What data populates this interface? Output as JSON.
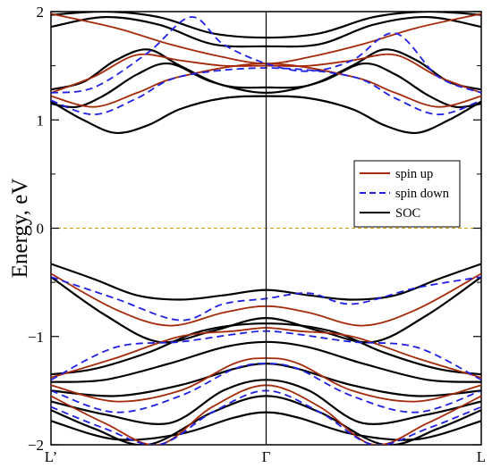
{
  "chart_data": {
    "type": "line",
    "title": "",
    "ylabel": "Energy, eV",
    "ylim": [
      -2,
      2
    ],
    "yticks": [
      {
        "value": -2,
        "label": "−2"
      },
      {
        "value": -1,
        "label": "−1"
      },
      {
        "value": 0,
        "label": "0"
      },
      {
        "value": 1,
        "label": "1"
      },
      {
        "value": 2,
        "label": "2"
      }
    ],
    "xlim": [
      0,
      2
    ],
    "kpoints": [
      {
        "x": 0,
        "label": "L’"
      },
      {
        "x": 1,
        "label": "Γ"
      },
      {
        "x": 2,
        "label": "L"
      }
    ],
    "fermi_level": 0,
    "fermi_color": "#c8a000",
    "legend": {
      "position": "right-middle",
      "entries": [
        {
          "label": "spin up",
          "color": "#a52a0a",
          "style": "solid"
        },
        {
          "label": "spin down",
          "color": "#1f1fe6",
          "style": "dashed"
        },
        {
          "label": "SOC",
          "color": "#000000",
          "style": "solid"
        }
      ]
    },
    "series": [
      {
        "group": "SOC",
        "color": "#000000",
        "style": "solid",
        "bands": [
          [
            [
              0,
              1.97
            ],
            [
              0.25,
              2.0
            ],
            [
              0.5,
              1.95
            ],
            [
              0.75,
              1.8
            ],
            [
              1,
              1.76
            ],
            [
              1.25,
              1.8
            ],
            [
              1.5,
              1.95
            ],
            [
              1.75,
              2.0
            ],
            [
              2,
              1.97
            ]
          ],
          [
            [
              0,
              1.86
            ],
            [
              0.25,
              1.95
            ],
            [
              0.5,
              1.88
            ],
            [
              0.75,
              1.7
            ],
            [
              1,
              1.68
            ],
            [
              1.25,
              1.7
            ],
            [
              1.5,
              1.88
            ],
            [
              1.75,
              1.95
            ],
            [
              2,
              1.86
            ]
          ],
          [
            [
              0,
              1.28
            ],
            [
              0.15,
              1.35
            ],
            [
              0.3,
              1.55
            ],
            [
              0.45,
              1.65
            ],
            [
              0.6,
              1.5
            ],
            [
              0.8,
              1.32
            ],
            [
              1,
              1.3
            ],
            [
              1.2,
              1.32
            ],
            [
              1.4,
              1.5
            ],
            [
              1.55,
              1.65
            ],
            [
              1.7,
              1.55
            ],
            [
              1.85,
              1.35
            ],
            [
              2,
              1.28
            ]
          ],
          [
            [
              0,
              1.15
            ],
            [
              0.12,
              1.12
            ],
            [
              0.25,
              1.23
            ],
            [
              0.4,
              1.42
            ],
            [
              0.55,
              1.52
            ],
            [
              0.75,
              1.35
            ],
            [
              1,
              1.25
            ],
            [
              1.25,
              1.35
            ],
            [
              1.45,
              1.52
            ],
            [
              1.6,
              1.42
            ],
            [
              1.75,
              1.23
            ],
            [
              1.88,
              1.12
            ],
            [
              2,
              1.15
            ]
          ],
          [
            [
              0,
              1.17
            ],
            [
              0.15,
              1.0
            ],
            [
              0.3,
              0.88
            ],
            [
              0.45,
              0.95
            ],
            [
              0.6,
              1.1
            ],
            [
              0.8,
              1.2
            ],
            [
              1,
              1.22
            ],
            [
              1.2,
              1.2
            ],
            [
              1.4,
              1.1
            ],
            [
              1.55,
              0.95
            ],
            [
              1.7,
              0.88
            ],
            [
              1.85,
              1.0
            ],
            [
              2,
              1.17
            ]
          ],
          [
            [
              0,
              -0.33
            ],
            [
              0.2,
              -0.47
            ],
            [
              0.4,
              -0.62
            ],
            [
              0.6,
              -0.66
            ],
            [
              0.8,
              -0.62
            ],
            [
              1,
              -0.57
            ],
            [
              1.2,
              -0.62
            ],
            [
              1.4,
              -0.66
            ],
            [
              1.6,
              -0.62
            ],
            [
              1.8,
              -0.47
            ],
            [
              2,
              -0.33
            ]
          ],
          [
            [
              0,
              -0.45
            ],
            [
              0.25,
              -0.8
            ],
            [
              0.5,
              -1.05
            ],
            [
              0.75,
              -0.95
            ],
            [
              1,
              -0.83
            ],
            [
              1.25,
              -0.95
            ],
            [
              1.5,
              -1.05
            ],
            [
              1.75,
              -0.8
            ],
            [
              2,
              -0.45
            ]
          ],
          [
            [
              0,
              -1.35
            ],
            [
              0.2,
              -1.3
            ],
            [
              0.45,
              -1.15
            ],
            [
              0.7,
              -0.95
            ],
            [
              1,
              -0.88
            ],
            [
              1.3,
              -0.95
            ],
            [
              1.55,
              -1.15
            ],
            [
              1.8,
              -1.3
            ],
            [
              2,
              -1.35
            ]
          ],
          [
            [
              0,
              -1.42
            ],
            [
              0.25,
              -1.4
            ],
            [
              0.55,
              -1.25
            ],
            [
              0.8,
              -1.1
            ],
            [
              1,
              -1.05
            ],
            [
              1.2,
              -1.1
            ],
            [
              1.45,
              -1.25
            ],
            [
              1.75,
              -1.4
            ],
            [
              2,
              -1.42
            ]
          ],
          [
            [
              0,
              -1.5
            ],
            [
              0.3,
              -1.55
            ],
            [
              0.6,
              -1.45
            ],
            [
              0.85,
              -1.3
            ],
            [
              1,
              -1.25
            ],
            [
              1.15,
              -1.3
            ],
            [
              1.4,
              -1.45
            ],
            [
              1.7,
              -1.55
            ],
            [
              2,
              -1.5
            ]
          ],
          [
            [
              0,
              -1.6
            ],
            [
              0.25,
              -1.72
            ],
            [
              0.55,
              -1.8
            ],
            [
              0.8,
              -1.5
            ],
            [
              1,
              -1.4
            ],
            [
              1.2,
              -1.5
            ],
            [
              1.45,
              -1.8
            ],
            [
              1.75,
              -1.72
            ],
            [
              2,
              -1.6
            ]
          ],
          [
            [
              0,
              -1.68
            ],
            [
              0.2,
              -1.85
            ],
            [
              0.45,
              -2.0
            ],
            [
              0.75,
              -1.7
            ],
            [
              1,
              -1.55
            ],
            [
              1.25,
              -1.7
            ],
            [
              1.55,
              -2.0
            ],
            [
              1.8,
              -1.85
            ],
            [
              2,
              -1.68
            ]
          ],
          [
            [
              0,
              -1.78
            ],
            [
              0.3,
              -1.95
            ],
            [
              0.6,
              -1.9
            ],
            [
              0.85,
              -1.75
            ],
            [
              1,
              -1.7
            ],
            [
              1.15,
              -1.75
            ],
            [
              1.4,
              -1.9
            ],
            [
              1.7,
              -1.95
            ],
            [
              2,
              -1.78
            ]
          ]
        ]
      },
      {
        "group": "spin up",
        "color": "#a52a0a",
        "style": "solid",
        "bands": [
          [
            [
              0,
              1.98
            ],
            [
              0.3,
              1.85
            ],
            [
              0.55,
              1.7
            ],
            [
              0.8,
              1.58
            ],
            [
              1,
              1.52
            ],
            [
              1.2,
              1.58
            ],
            [
              1.45,
              1.7
            ],
            [
              1.7,
              1.85
            ],
            [
              2,
              1.98
            ]
          ],
          [
            [
              0,
              1.25
            ],
            [
              0.2,
              1.4
            ],
            [
              0.4,
              1.6
            ],
            [
              0.6,
              1.55
            ],
            [
              0.8,
              1.5
            ],
            [
              1,
              1.5
            ],
            [
              1.2,
              1.5
            ],
            [
              1.4,
              1.55
            ],
            [
              1.6,
              1.6
            ],
            [
              1.8,
              1.4
            ],
            [
              2,
              1.25
            ]
          ],
          [
            [
              0,
              1.22
            ],
            [
              0.2,
              1.12
            ],
            [
              0.4,
              1.25
            ],
            [
              0.6,
              1.4
            ],
            [
              1,
              1.52
            ],
            [
              1.4,
              1.4
            ],
            [
              1.6,
              1.25
            ],
            [
              1.8,
              1.12
            ],
            [
              2,
              1.22
            ]
          ],
          [
            [
              0,
              -0.42
            ],
            [
              0.3,
              -0.75
            ],
            [
              0.55,
              -0.9
            ],
            [
              0.8,
              -0.78
            ],
            [
              1,
              -0.72
            ],
            [
              1.2,
              -0.78
            ],
            [
              1.45,
              -0.9
            ],
            [
              1.7,
              -0.75
            ],
            [
              2,
              -0.42
            ]
          ],
          [
            [
              0,
              -1.38
            ],
            [
              0.3,
              -1.2
            ],
            [
              0.6,
              -1.0
            ],
            [
              0.85,
              -0.95
            ],
            [
              1,
              -0.92
            ],
            [
              1.15,
              -0.95
            ],
            [
              1.4,
              -1.0
            ],
            [
              1.7,
              -1.2
            ],
            [
              2,
              -1.38
            ]
          ],
          [
            [
              0,
              -1.45
            ],
            [
              0.3,
              -1.6
            ],
            [
              0.6,
              -1.5
            ],
            [
              0.85,
              -1.25
            ],
            [
              1,
              -1.2
            ],
            [
              1.15,
              -1.25
            ],
            [
              1.4,
              -1.5
            ],
            [
              1.7,
              -1.6
            ],
            [
              2,
              -1.45
            ]
          ],
          [
            [
              0,
              -1.55
            ],
            [
              0.25,
              -1.8
            ],
            [
              0.5,
              -2.0
            ],
            [
              0.75,
              -1.65
            ],
            [
              1,
              -1.45
            ],
            [
              1.25,
              -1.65
            ],
            [
              1.5,
              -2.0
            ],
            [
              1.75,
              -1.8
            ],
            [
              2,
              -1.55
            ]
          ]
        ]
      },
      {
        "group": "spin down",
        "color": "#1f1fe6",
        "style": "dashed",
        "bands": [
          [
            [
              0,
              1.25
            ],
            [
              0.2,
              1.3
            ],
            [
              0.45,
              1.62
            ],
            [
              0.65,
              1.95
            ],
            [
              0.8,
              1.7
            ],
            [
              1,
              1.52
            ],
            [
              1.2,
              1.45
            ],
            [
              1.4,
              1.55
            ],
            [
              1.6,
              1.8
            ],
            [
              1.8,
              1.4
            ],
            [
              2,
              1.25
            ]
          ],
          [
            [
              0,
              1.18
            ],
            [
              0.2,
              1.05
            ],
            [
              0.4,
              1.2
            ],
            [
              0.6,
              1.4
            ],
            [
              1,
              1.48
            ],
            [
              1.4,
              1.4
            ],
            [
              1.6,
              1.2
            ],
            [
              1.8,
              1.05
            ],
            [
              2,
              1.18
            ]
          ],
          [
            [
              0,
              -0.45
            ],
            [
              0.3,
              -0.65
            ],
            [
              0.6,
              -0.85
            ],
            [
              0.8,
              -0.7
            ],
            [
              1,
              -0.65
            ],
            [
              1.2,
              -0.6
            ],
            [
              1.4,
              -0.7
            ],
            [
              1.7,
              -0.55
            ],
            [
              2,
              -0.45
            ]
          ],
          [
            [
              0,
              -1.4
            ],
            [
              0.3,
              -1.1
            ],
            [
              0.6,
              -1.05
            ],
            [
              0.85,
              -0.98
            ],
            [
              1,
              -0.95
            ],
            [
              1.15,
              -0.98
            ],
            [
              1.4,
              -1.05
            ],
            [
              1.7,
              -1.1
            ],
            [
              2,
              -1.4
            ]
          ],
          [
            [
              0,
              -1.5
            ],
            [
              0.3,
              -1.7
            ],
            [
              0.6,
              -1.55
            ],
            [
              0.85,
              -1.3
            ],
            [
              1,
              -1.25
            ],
            [
              1.15,
              -1.3
            ],
            [
              1.4,
              -1.55
            ],
            [
              1.7,
              -1.7
            ],
            [
              2,
              -1.5
            ]
          ],
          [
            [
              0,
              -1.65
            ],
            [
              0.25,
              -1.85
            ],
            [
              0.5,
              -2.0
            ],
            [
              0.75,
              -1.7
            ],
            [
              1,
              -1.5
            ],
            [
              1.25,
              -1.7
            ],
            [
              1.5,
              -2.0
            ],
            [
              1.75,
              -1.85
            ],
            [
              2,
              -1.65
            ]
          ]
        ]
      }
    ]
  }
}
